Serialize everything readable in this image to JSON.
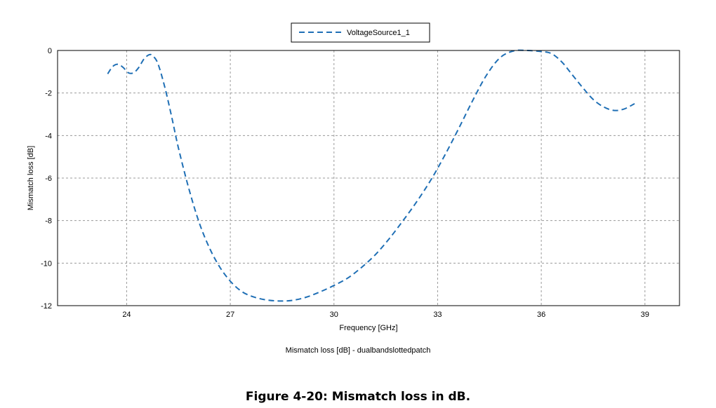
{
  "chart_data": {
    "type": "line",
    "legend": {
      "entries": [
        "VoltageSource1_1"
      ],
      "placement": "top-center"
    },
    "xlabel": "Frequency [GHz]",
    "ylabel": "Mismatch loss [dB]",
    "subtitle": "Mismatch loss [dB] - dualbandslottedpatch",
    "xlim": [
      22.0,
      40.0
    ],
    "ylim": [
      -12,
      0
    ],
    "x_ticks": [
      24,
      27,
      30,
      33,
      36,
      39
    ],
    "y_ticks": [
      0,
      -2,
      -4,
      -6,
      -8,
      -10,
      -12
    ],
    "grid": true,
    "series": [
      {
        "name": "VoltageSource1_1",
        "color": "#1f6fb5",
        "line_style": "dashed",
        "x": [
          23.45,
          23.6,
          23.75,
          23.9,
          24.05,
          24.2,
          24.35,
          24.5,
          24.65,
          24.75,
          24.9,
          25.1,
          25.3,
          25.5,
          25.8,
          26.1,
          26.4,
          26.7,
          27.0,
          27.3,
          27.6,
          28.0,
          28.4,
          28.8,
          29.2,
          29.6,
          30.0,
          30.4,
          30.8,
          31.2,
          31.6,
          32.0,
          32.4,
          32.8,
          33.2,
          33.6,
          34.0,
          34.4,
          34.8,
          35.2,
          35.6,
          36.0,
          36.3,
          36.6,
          36.9,
          37.2,
          37.5,
          37.8,
          38.1,
          38.4,
          38.7
        ],
        "y": [
          -1.1,
          -0.75,
          -0.65,
          -0.8,
          -1.05,
          -1.05,
          -0.8,
          -0.4,
          -0.2,
          -0.25,
          -0.6,
          -1.7,
          -3.1,
          -4.6,
          -6.5,
          -8.1,
          -9.3,
          -10.2,
          -10.85,
          -11.3,
          -11.55,
          -11.72,
          -11.78,
          -11.75,
          -11.6,
          -11.35,
          -11.05,
          -10.7,
          -10.2,
          -9.6,
          -8.85,
          -8.0,
          -7.1,
          -6.1,
          -4.95,
          -3.7,
          -2.4,
          -1.2,
          -0.35,
          -0.02,
          0.0,
          -0.05,
          -0.15,
          -0.55,
          -1.15,
          -1.75,
          -2.3,
          -2.65,
          -2.82,
          -2.75,
          -2.5
        ]
      }
    ]
  },
  "caption": "Figure 4-20: Mismatch loss in dB."
}
